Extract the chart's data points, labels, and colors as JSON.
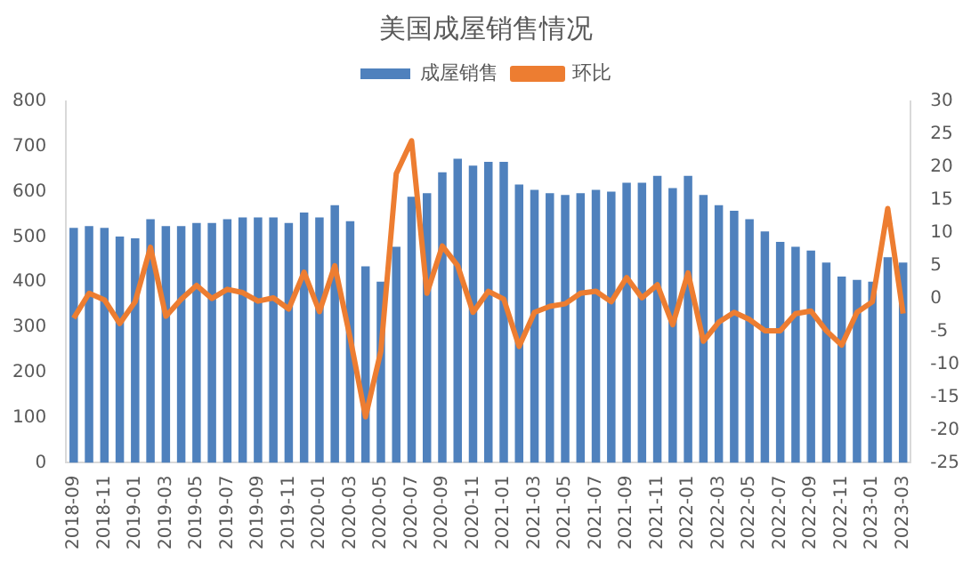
{
  "chart_data": {
    "type": "bar",
    "title": "美国成屋销售情况",
    "categories": [
      "2018-09",
      null,
      "2018-11",
      null,
      "2019-01",
      null,
      "2019-03",
      null,
      "2019-05",
      null,
      "2019-07",
      null,
      "2019-09",
      null,
      "2019-11",
      null,
      "2020-01",
      null,
      "2020-03",
      null,
      "2020-05",
      null,
      "2020-07",
      null,
      "2020-09",
      null,
      "2020-11",
      null,
      "2021-01",
      null,
      "2021-03",
      null,
      "2021-05",
      null,
      "2021-07",
      null,
      "2021-09",
      null,
      "2021-11",
      null,
      "2022-01",
      null,
      "2022-03",
      null,
      "2022-05",
      null,
      "2022-07",
      null,
      "2022-09",
      null,
      "2022-11",
      null,
      "2023-01",
      null,
      "2023-03"
    ],
    "series": [
      {
        "name": "成屋销售",
        "color": "#4f81bd",
        "values": [
          520,
          524,
          520,
          501,
          497,
          539,
          524,
          524,
          531,
          531,
          539,
          543,
          543,
          543,
          531,
          554,
          543,
          570,
          535,
          435,
          401,
          478,
          589,
          597,
          643,
          673,
          658,
          666,
          666,
          616,
          604,
          597,
          593,
          597,
          604,
          600,
          620,
          620,
          635,
          608,
          635,
          593,
          570,
          558,
          539,
          512,
          489,
          478,
          470,
          443,
          412,
          405,
          401,
          455,
          443
        ]
      },
      {
        "name": "环比",
        "type": "line",
        "axis": "y2",
        "color": "#ed7d31",
        "values": [
          -3.0,
          0.8,
          -0.2,
          -3.8,
          -0.5,
          7.8,
          -2.7,
          -0.1,
          2.0,
          0,
          1.4,
          0.9,
          -0.4,
          0.1,
          -1.6,
          4,
          -2.0,
          5,
          -6,
          -18,
          -8,
          19,
          24,
          0.8,
          8,
          5,
          -2.1,
          1.1,
          -0.1,
          -7.3,
          -2.1,
          -1.2,
          -0.8,
          0.8,
          1.1,
          -0.5,
          3.2,
          0.1,
          2.1,
          -4,
          3.9,
          -6.5,
          -3.6,
          -2.1,
          -3.2,
          -4.9,
          -4.9,
          -2.3,
          -1.9,
          -4.9,
          -7.1,
          -2.1,
          -0.5,
          13.7,
          -2.3
        ]
      }
    ],
    "ylim": [
      0,
      800
    ],
    "yticks": [
      0,
      100,
      200,
      300,
      400,
      500,
      600,
      700,
      800
    ],
    "y2lim": [
      -25,
      30
    ],
    "y2ticks": [
      -25,
      -20,
      -15,
      -10,
      -5,
      0,
      5,
      10,
      15,
      20,
      25,
      30
    ],
    "legend": "top",
    "grid": false,
    "marker": "none"
  }
}
